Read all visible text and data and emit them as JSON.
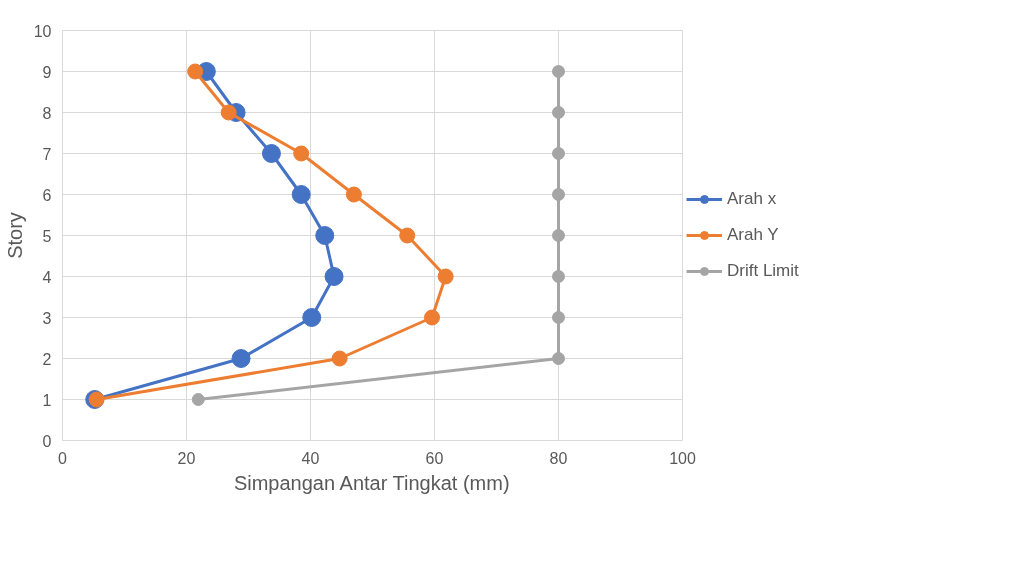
{
  "chart_data": {
    "type": "line",
    "xlabel": "Simpangan Antar Tingkat (mm)",
    "ylabel": "Story",
    "xlim": [
      0,
      100
    ],
    "ylim": [
      0,
      10
    ],
    "xticks": [
      0,
      20,
      40,
      60,
      80,
      100
    ],
    "yticks": [
      0,
      1,
      2,
      3,
      4,
      5,
      6,
      7,
      8,
      9,
      10
    ],
    "grid": true,
    "legend": "right",
    "marker": "circle",
    "line_style": "solid",
    "series": [
      {
        "name": "Arah x",
        "color": "#4472c4",
        "x": [
          5.2,
          28.8,
          40.2,
          43.8,
          42.3,
          38.5,
          33.7,
          28.0,
          23.2
        ],
        "values": [
          1,
          2,
          3,
          4,
          5,
          6,
          7,
          8,
          9
        ]
      },
      {
        "name": "Arah Y",
        "color": "#ed7d31",
        "x": [
          5.5,
          44.7,
          59.6,
          61.8,
          55.6,
          47.0,
          38.5,
          26.8,
          21.4
        ],
        "values": [
          1,
          2,
          3,
          4,
          5,
          6,
          7,
          8,
          9
        ]
      },
      {
        "name": "Drift Limit",
        "color": "#a5a5a5",
        "x": [
          21.9,
          80,
          80,
          80,
          80,
          80,
          80,
          80,
          80
        ],
        "values": [
          1,
          2,
          3,
          4,
          5,
          6,
          7,
          8,
          9
        ]
      }
    ]
  }
}
